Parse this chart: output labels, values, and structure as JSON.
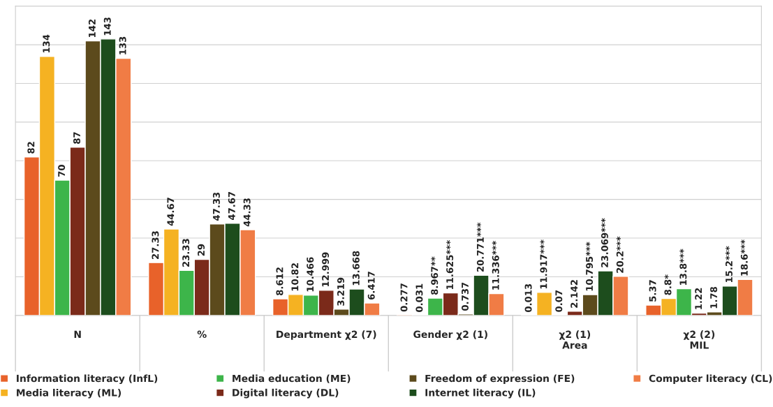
{
  "chart_data": {
    "type": "bar",
    "categories": [
      "N",
      "%",
      "Department χ2 (7)",
      "Gender χ2 (1)",
      "χ2 (1)\nArea",
      "χ2 (2)\nMIL"
    ],
    "series": [
      {
        "name": "Information literacy (InfL)",
        "color": "#e8622a",
        "values": [
          82,
          27.33,
          8.612,
          0.277,
          0.013,
          5.37
        ],
        "value_labels": [
          "82",
          "27.33",
          "8.612",
          "0.277",
          "0.013",
          "5.37"
        ]
      },
      {
        "name": "Media literacy (ML)",
        "color": "#f5b222",
        "values": [
          134,
          44.67,
          10.82,
          0.031,
          11.917,
          8.8
        ],
        "value_labels": [
          "134",
          "44.67",
          "10.82",
          "0.031",
          "11.917***",
          "8.8*"
        ]
      },
      {
        "name": "Media education (ME)",
        "color": "#3db54a",
        "values": [
          70,
          23.33,
          10.466,
          8.967,
          0.07,
          13.8
        ],
        "value_labels": [
          "70",
          "23.33",
          "10.466",
          "8.967**",
          "0.07",
          "13.8***"
        ]
      },
      {
        "name": "Digital literacy (DL)",
        "color": "#7b2a1a",
        "values": [
          87,
          29,
          12.999,
          11.625,
          2.142,
          1.22
        ],
        "value_labels": [
          "87",
          "29",
          "12.999",
          "11.625***",
          "2.142",
          "1.22"
        ]
      },
      {
        "name": "Freedom of expression (FE)",
        "color": "#5c4a1c",
        "values": [
          142,
          47.33,
          3.219,
          0.737,
          10.795,
          1.78
        ],
        "value_labels": [
          "142",
          "47.33",
          "3.219",
          "0.737",
          "10.795***",
          "1.78"
        ]
      },
      {
        "name": "Internet literacy (IL)",
        "color": "#1d4d1d",
        "values": [
          143,
          47.67,
          13.668,
          20.771,
          23.069,
          15.2
        ],
        "value_labels": [
          "143",
          "47.67",
          "13.668",
          "20.771***",
          "23.069***",
          "15.2***"
        ]
      },
      {
        "name": "Computer literacy (CL)",
        "color": "#f07c45",
        "values": [
          133,
          44.33,
          6.417,
          11.336,
          20.2,
          18.6
        ],
        "value_labels": [
          "133",
          "44.33",
          "6.417",
          "11.336***",
          "20.2***",
          "18.6***"
        ]
      }
    ],
    "ylim": [
      0,
      160
    ],
    "yticks": [
      {
        "value": 0,
        "label": null
      },
      {
        "value": 20,
        "label": null
      },
      {
        "value": 40,
        "label": null
      },
      {
        "value": 60,
        "label": null
      },
      {
        "value": 80,
        "label": null
      },
      {
        "value": 100,
        "label": null
      },
      {
        "value": 120,
        "label": null
      },
      {
        "value": 140,
        "label": null
      },
      {
        "value": 160,
        "label": null
      }
    ],
    "grid": "y",
    "tick_labels": "x",
    "legend": "bottom"
  }
}
